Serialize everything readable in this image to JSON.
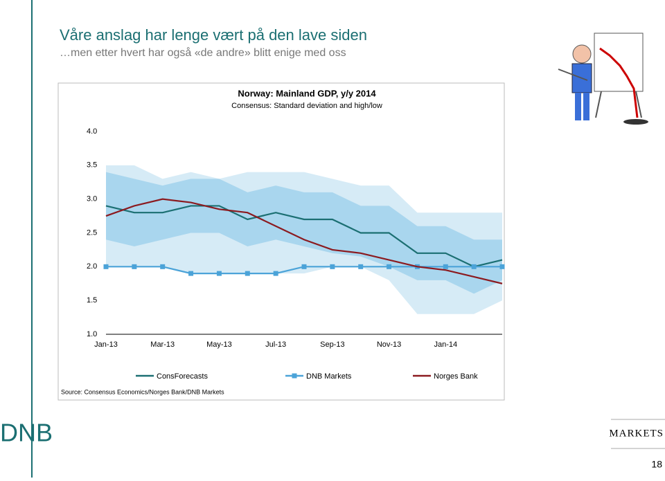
{
  "slide": {
    "title": "Våre anslag har lenge vært på den lave siden",
    "subtitle": "…men etter hvert har også «de andre» blitt enige med oss",
    "source": "Source: Consensus Economics/Norges Bank/DNB Markets",
    "logo": "DNB",
    "brand": "MARKETS",
    "page": "18"
  },
  "chart_data": {
    "type": "line",
    "title": "Norway: Mainland GDP, y/y 2014",
    "subtitle": "Consensus: Standard deviation and high/low",
    "categories": [
      "Jan-13",
      null,
      "Mar-13",
      null,
      "May-13",
      null,
      "Jul-13",
      null,
      "Sep-13",
      null,
      "Nov-13",
      null,
      "Jan-14",
      null,
      null
    ],
    "ylim": [
      1,
      4
    ],
    "yticks": [
      {
        "value": 1,
        "label": "1.0"
      },
      {
        "value": 1.5,
        "label": "1.5"
      },
      {
        "value": 2,
        "label": "2.0"
      },
      {
        "value": 2.5,
        "label": "2.5"
      },
      {
        "value": 3,
        "label": "3.0"
      },
      {
        "value": 3.5,
        "label": "3.5"
      },
      {
        "value": 4,
        "label": "4.0"
      }
    ],
    "bands": [
      {
        "color": "#d6ebf6",
        "low": [
          2.0,
          2.0,
          2.0,
          1.9,
          1.9,
          1.9,
          1.9,
          1.9,
          2.0,
          2.0,
          1.8,
          1.3,
          1.3,
          1.3,
          1.5
        ],
        "high": [
          3.5,
          3.5,
          3.3,
          3.4,
          3.3,
          3.4,
          3.4,
          3.4,
          3.3,
          3.2,
          3.2,
          2.8,
          2.8,
          2.8,
          2.8
        ]
      },
      {
        "color": "#a9d6ee",
        "low": [
          2.4,
          2.3,
          2.4,
          2.5,
          2.5,
          2.3,
          2.4,
          2.3,
          2.2,
          2.15,
          2.0,
          1.8,
          1.8,
          1.6,
          1.8
        ],
        "high": [
          3.4,
          3.3,
          3.2,
          3.3,
          3.3,
          3.1,
          3.2,
          3.1,
          3.1,
          2.9,
          2.9,
          2.6,
          2.6,
          2.4,
          2.4
        ]
      }
    ],
    "series": [
      {
        "name": "ConsForecasts",
        "color": "#1b6f72",
        "marker": false,
        "values": [
          2.9,
          2.8,
          2.8,
          2.9,
          2.9,
          2.7,
          2.8,
          2.7,
          2.7,
          2.5,
          2.5,
          2.2,
          2.2,
          2.0,
          2.1
        ]
      },
      {
        "name": "DNB Markets",
        "color": "#4ba3d8",
        "marker": true,
        "values": [
          2.0,
          2.0,
          2.0,
          1.9,
          1.9,
          1.9,
          1.9,
          2.0,
          2.0,
          2.0,
          2.0,
          2.0,
          2.0,
          2.0,
          2.0
        ]
      },
      {
        "name": "Norges Bank",
        "color": "#8b1a1f",
        "marker": false,
        "values": [
          2.75,
          2.9,
          3.0,
          2.95,
          2.85,
          2.8,
          2.6,
          2.4,
          2.25,
          2.2,
          2.1,
          2.0,
          1.95,
          1.85,
          1.75
        ]
      }
    ]
  }
}
